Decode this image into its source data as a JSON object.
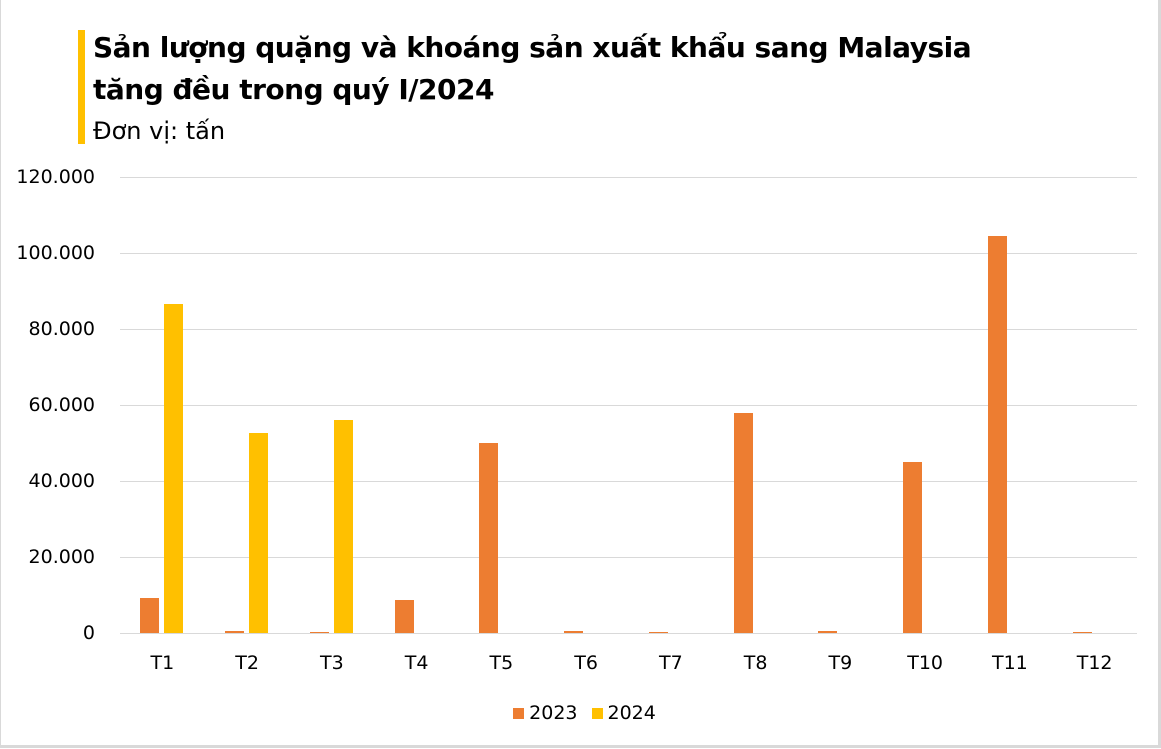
{
  "header": {
    "title_line1": "Sản lượng quặng và khoáng sản xuất khẩu sang Malaysia",
    "title_line2": "tăng đều trong quý I/2024",
    "unit": "Đơn vị: tấn",
    "accent_color": "#ffc000"
  },
  "colors": {
    "s2023": "#ed7d31",
    "s2024": "#ffc000",
    "grid": "#d9d9d9"
  },
  "yaxis": {
    "ticks": [
      "120.000",
      "100.000",
      "80.000",
      "60.000",
      "40.000",
      "20.000",
      "0"
    ]
  },
  "legend": {
    "s2023": "2023",
    "s2024": "2024"
  },
  "chart_data": {
    "type": "bar",
    "title": "Sản lượng quặng và khoáng sản xuất khẩu sang Malaysia tăng đều trong quý I/2024",
    "subtitle": "Đơn vị: tấn",
    "xlabel": "",
    "ylabel": "",
    "ylim": [
      0,
      120000
    ],
    "yticks": [
      0,
      20000,
      40000,
      60000,
      80000,
      100000,
      120000
    ],
    "grid": true,
    "legend_position": "bottom",
    "categories": [
      "T1",
      "T2",
      "T3",
      "T4",
      "T5",
      "T6",
      "T7",
      "T8",
      "T9",
      "T10",
      "T11",
      "T12"
    ],
    "series": [
      {
        "name": "2023",
        "color": "#ed7d31",
        "values": [
          9200,
          500,
          300,
          8700,
          50000,
          500,
          300,
          58000,
          500,
          45000,
          104500,
          300
        ]
      },
      {
        "name": "2024",
        "color": "#ffc000",
        "values": [
          86600,
          52600,
          56100,
          null,
          null,
          null,
          null,
          null,
          null,
          null,
          null,
          null
        ]
      }
    ]
  }
}
